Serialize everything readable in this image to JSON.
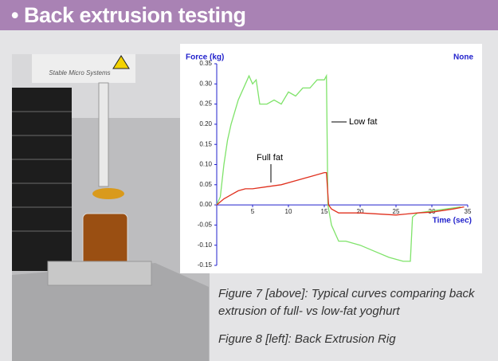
{
  "header": {
    "title": "• Back extrusion testing"
  },
  "chart_data": {
    "type": "line",
    "y_label": "Force (kg)",
    "x_label": "Time (sec)",
    "top_right_label": "None",
    "xlim": [
      0,
      35
    ],
    "ylim": [
      -0.15,
      0.35
    ],
    "xticks": [
      0,
      5,
      10,
      15,
      20,
      25,
      30,
      35
    ],
    "yticks": [
      0.35,
      {
        "value": 0.3,
        "label": "0.30"
      },
      0.25,
      {
        "value": 0.2,
        "label": "0.20"
      },
      0.15,
      {
        "value": 0.1,
        "label": "0.10"
      },
      0.05,
      {
        "value": 0,
        "label": "0.00"
      },
      -0.05,
      {
        "value": -0.1,
        "label": "-0.10"
      },
      -0.15
    ],
    "series": [
      {
        "name": "Low fat",
        "color": "#7fe36a",
        "x": [
          0,
          0.5,
          1,
          1.5,
          2,
          3,
          4,
          4.5,
          5,
          5.5,
          6,
          7,
          8,
          9,
          10,
          11,
          12,
          13,
          14,
          15,
          15.3,
          15.5,
          16,
          17,
          18,
          20,
          22,
          24,
          26,
          27,
          27.3,
          28,
          30,
          32,
          34
        ],
        "values": [
          0,
          0.02,
          0.1,
          0.16,
          0.2,
          0.26,
          0.3,
          0.32,
          0.3,
          0.31,
          0.25,
          0.25,
          0.26,
          0.25,
          0.28,
          0.27,
          0.29,
          0.29,
          0.31,
          0.31,
          0.32,
          0.0,
          -0.05,
          -0.09,
          -0.09,
          -0.1,
          -0.115,
          -0.13,
          -0.14,
          -0.14,
          -0.03,
          -0.02,
          -0.015,
          -0.01,
          -0.005
        ]
      },
      {
        "name": "Full fat",
        "color": "#e0301e",
        "x": [
          0,
          1,
          2,
          3,
          4,
          5,
          7,
          9,
          11,
          13,
          15,
          15.3,
          15.6,
          16,
          17,
          20,
          25,
          28,
          30,
          33,
          34.5
        ],
        "values": [
          0,
          0.015,
          0.025,
          0.035,
          0.04,
          0.04,
          0.045,
          0.05,
          0.06,
          0.07,
          0.08,
          0.08,
          0.0,
          -0.01,
          -0.02,
          -0.02,
          -0.025,
          -0.02,
          -0.018,
          -0.01,
          -0.005
        ]
      }
    ]
  },
  "captions": {
    "figure7": [
      "Figure 7 [above]: Typical curves comparing back",
      "extrusion of full- vs low-fat yoghurt"
    ],
    "figure8": "Figure 8 [left]: Back Extrusion Rig"
  },
  "photo": {
    "brand": "Stable Micro Systems"
  }
}
